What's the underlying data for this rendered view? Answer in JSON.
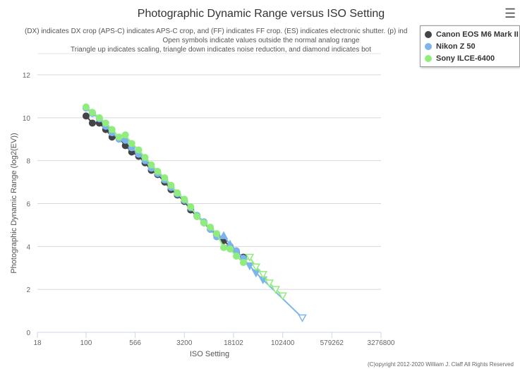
{
  "chart_data": {
    "type": "scatter",
    "title": "Photographic Dynamic Range versus ISO Setting",
    "subtitle": [
      "(DX) indicates DX crop (APS-C) indicates APS-C crop, and (FF) indicates FF crop. (ES) indicates electronic shutter. (p) ind",
      "Open symbols indicate values outside the normal analog range",
      "Triangle up indicates scaling, triangle down indicates noise reduction, and diamond indicates bot"
    ],
    "xlabel": "ISO Setting",
    "ylabel": "Photographic Dynamic Range (log2(EV))",
    "xscale": "log2",
    "xlim": [
      18,
      3276800
    ],
    "ylim": [
      0,
      12
    ],
    "xticks": [
      "18",
      "100",
      "566",
      "3200",
      "18102",
      "102400",
      "579262",
      "3276800"
    ],
    "xtick_values": [
      18,
      100,
      566,
      3200,
      18102,
      102400,
      579262,
      3276800
    ],
    "yticks": [
      "0",
      "2",
      "4",
      "6",
      "8",
      "10",
      "12"
    ],
    "grid": true,
    "legend_placement": "top-right",
    "series": [
      {
        "name": "Canon EOS M6 Mark II",
        "color": "#434348",
        "points": [
          [
            100,
            10.08,
            "circle"
          ],
          [
            125,
            9.75,
            "circle"
          ],
          [
            160,
            9.75,
            "circle"
          ],
          [
            200,
            9.45,
            "circle"
          ],
          [
            250,
            9.1,
            "circle"
          ],
          [
            320,
            9.05,
            "circle"
          ],
          [
            400,
            8.7,
            "circle"
          ],
          [
            500,
            8.4,
            "circle"
          ],
          [
            640,
            8.2,
            "circle"
          ],
          [
            800,
            7.9,
            "circle"
          ],
          [
            1000,
            7.55,
            "circle"
          ],
          [
            1250,
            7.35,
            "circle"
          ],
          [
            1600,
            7.0,
            "circle"
          ],
          [
            2000,
            6.65,
            "circle"
          ],
          [
            2500,
            6.4,
            "circle"
          ],
          [
            3200,
            6.1,
            "circle"
          ],
          [
            4000,
            5.7,
            "circle"
          ],
          [
            5000,
            5.4,
            "circle"
          ],
          [
            6400,
            5.1,
            "circle"
          ],
          [
            8000,
            4.8,
            "circle"
          ],
          [
            10000,
            4.55,
            "circle"
          ],
          [
            12800,
            4.28,
            "circle"
          ],
          [
            16000,
            4.0,
            "circle"
          ],
          [
            20000,
            3.75,
            "circle"
          ],
          [
            25600,
            3.5,
            "circle"
          ]
        ]
      },
      {
        "name": "Nikon Z 50",
        "color": "#7cb5ec",
        "points": [
          [
            100,
            10.45,
            "circle"
          ],
          [
            125,
            10.2,
            "circle"
          ],
          [
            160,
            9.95,
            "circle"
          ],
          [
            200,
            9.6,
            "circle"
          ],
          [
            250,
            9.3,
            "circle"
          ],
          [
            320,
            9.0,
            "circle"
          ],
          [
            400,
            8.95,
            "circle"
          ],
          [
            500,
            8.6,
            "circle"
          ],
          [
            640,
            8.3,
            "circle"
          ],
          [
            800,
            8.0,
            "circle"
          ],
          [
            1000,
            7.65,
            "circle"
          ],
          [
            1250,
            7.4,
            "circle"
          ],
          [
            1600,
            7.1,
            "circle"
          ],
          [
            2000,
            6.75,
            "circle"
          ],
          [
            2500,
            6.45,
            "circle"
          ],
          [
            3200,
            6.15,
            "circle"
          ],
          [
            4000,
            5.8,
            "circle"
          ],
          [
            5000,
            5.45,
            "circle"
          ],
          [
            6400,
            5.15,
            "circle"
          ],
          [
            8000,
            4.8,
            "circle"
          ],
          [
            10000,
            4.45,
            "circle"
          ],
          [
            12800,
            4.5,
            "triangle-up"
          ],
          [
            16000,
            4.1,
            "triangle-up"
          ],
          [
            20000,
            3.8,
            "circle"
          ],
          [
            25600,
            3.45,
            "circle"
          ],
          [
            32000,
            3.1,
            "triangle-down"
          ],
          [
            40000,
            2.77,
            "triangle-down"
          ],
          [
            51200,
            2.45,
            "triangle-down"
          ],
          [
            204800,
            0.68,
            "triangle-down-open"
          ]
        ]
      },
      {
        "name": "Sony ILCE-6400",
        "color": "#90ed7d",
        "points": [
          [
            100,
            10.5,
            "circle"
          ],
          [
            125,
            10.25,
            "circle"
          ],
          [
            160,
            10.0,
            "circle"
          ],
          [
            200,
            9.75,
            "circle"
          ],
          [
            250,
            9.45,
            "circle"
          ],
          [
            320,
            9.1,
            "circle"
          ],
          [
            400,
            9.2,
            "circle"
          ],
          [
            500,
            8.8,
            "circle"
          ],
          [
            640,
            8.5,
            "circle"
          ],
          [
            800,
            8.15,
            "circle"
          ],
          [
            1000,
            7.8,
            "circle"
          ],
          [
            1250,
            7.5,
            "circle"
          ],
          [
            1600,
            7.2,
            "circle"
          ],
          [
            2000,
            6.85,
            "circle"
          ],
          [
            2500,
            6.5,
            "circle"
          ],
          [
            3200,
            6.2,
            "circle"
          ],
          [
            4000,
            5.85,
            "circle"
          ],
          [
            5000,
            5.4,
            "circle"
          ],
          [
            6400,
            5.1,
            "circle"
          ],
          [
            8000,
            4.9,
            "circle"
          ],
          [
            10000,
            4.6,
            "circle"
          ],
          [
            12800,
            3.95,
            "circle"
          ],
          [
            16000,
            3.88,
            "circle"
          ],
          [
            20000,
            3.55,
            "circle"
          ],
          [
            25600,
            3.25,
            "circle"
          ],
          [
            32000,
            3.5,
            "triangle-down-open"
          ],
          [
            40000,
            3.05,
            "triangle-down-open"
          ],
          [
            51200,
            2.7,
            "triangle-down-open"
          ],
          [
            64000,
            2.3,
            "triangle-down-open"
          ],
          [
            80000,
            2.0,
            "triangle-down-open"
          ],
          [
            102400,
            1.7,
            "triangle-down-open"
          ]
        ]
      }
    ]
  },
  "copyright": "(C)opyright 2012-2020 William J. Claff All Rights Reserved"
}
